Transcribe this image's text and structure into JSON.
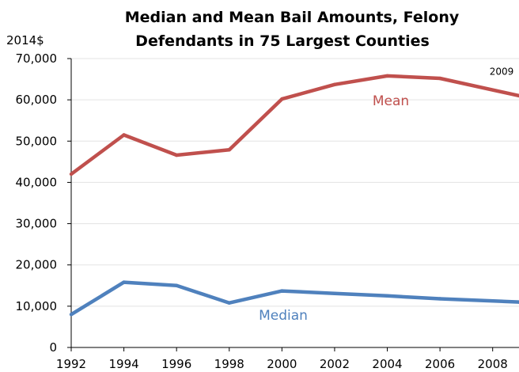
{
  "chart_data": {
    "type": "line",
    "title_lines": [
      "Median and Mean Bail Amounts, Felony",
      "Defendants in 75 Largest Counties"
    ],
    "ylabel": "2014$",
    "xlabel": "",
    "x": [
      1992,
      1994,
      1996,
      1998,
      2000,
      2002,
      2004,
      2006,
      2009
    ],
    "x_ticks": [
      "1992",
      "1994",
      "1996",
      "1998",
      "2000",
      "2002",
      "2004",
      "2006",
      "2008"
    ],
    "x_range": [
      1992,
      2009
    ],
    "ylim": [
      0,
      70000
    ],
    "y_ticks": [
      "0",
      "10,000",
      "20,000",
      "30,000",
      "40,000",
      "50,000",
      "60,000",
      "70,000"
    ],
    "grid": true,
    "series": [
      {
        "name": "Mean",
        "color": "#c0504d",
        "values": [
          42000,
          51500,
          46600,
          47900,
          60200,
          63700,
          65800,
          65200,
          61000
        ]
      },
      {
        "name": "Median",
        "color": "#4f81bd",
        "values": [
          8000,
          15800,
          15000,
          10800,
          13700,
          13100,
          12500,
          11800,
          11000
        ]
      }
    ],
    "annotations": [
      {
        "text": "2009",
        "x": 2009,
        "y": 66800
      }
    ]
  }
}
